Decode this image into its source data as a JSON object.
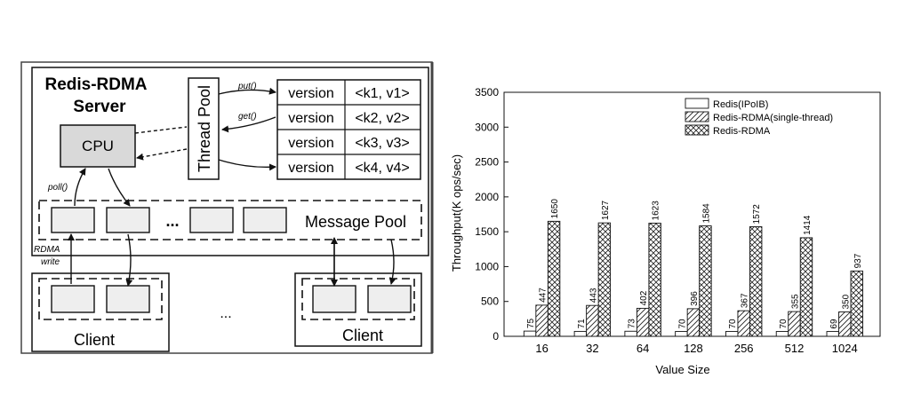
{
  "diagram": {
    "server_title_line1": "Redis-RDMA",
    "server_title_line2": "Server",
    "cpu_label": "CPU",
    "thread_pool_label": "Thread Pool",
    "put_label": "put()",
    "get_label": "get()",
    "poll_label": "poll()",
    "rdma_label": "RDMA",
    "write_label": "write",
    "rows": [
      {
        "version": "version",
        "kv": "<k1, v1>"
      },
      {
        "version": "version",
        "kv": "<k2, v2>"
      },
      {
        "version": "version",
        "kv": "<k3, v3>"
      },
      {
        "version": "version",
        "kv": "<k4, v4>"
      }
    ],
    "pool_ellipsis": "...",
    "message_pool_label": "Message Pool",
    "client_ellipsis": "...",
    "client_left_label": "Client",
    "client_right_label": "Client"
  },
  "chart_data": {
    "type": "bar",
    "xlabel": "Value Size",
    "ylabel": "Throughput(K ops/sec)",
    "categories": [
      "16",
      "32",
      "64",
      "128",
      "256",
      "512",
      "1024"
    ],
    "ylim": [
      0,
      3500
    ],
    "yticks": [
      0,
      500,
      1000,
      1500,
      2000,
      2500,
      3000,
      3500
    ],
    "legend_position": "top-right",
    "series": [
      {
        "name": "Redis(IPoIB)",
        "pattern": "none",
        "values": [
          75,
          71,
          73,
          70,
          70,
          70,
          69
        ]
      },
      {
        "name": "Redis-RDMA(single-thread)",
        "pattern": "hatch",
        "values": [
          447,
          443,
          402,
          396,
          367,
          355,
          350
        ]
      },
      {
        "name": "Redis-RDMA",
        "pattern": "cross",
        "values": [
          1650,
          1627,
          1623,
          1584,
          1572,
          1414,
          937
        ]
      }
    ]
  }
}
